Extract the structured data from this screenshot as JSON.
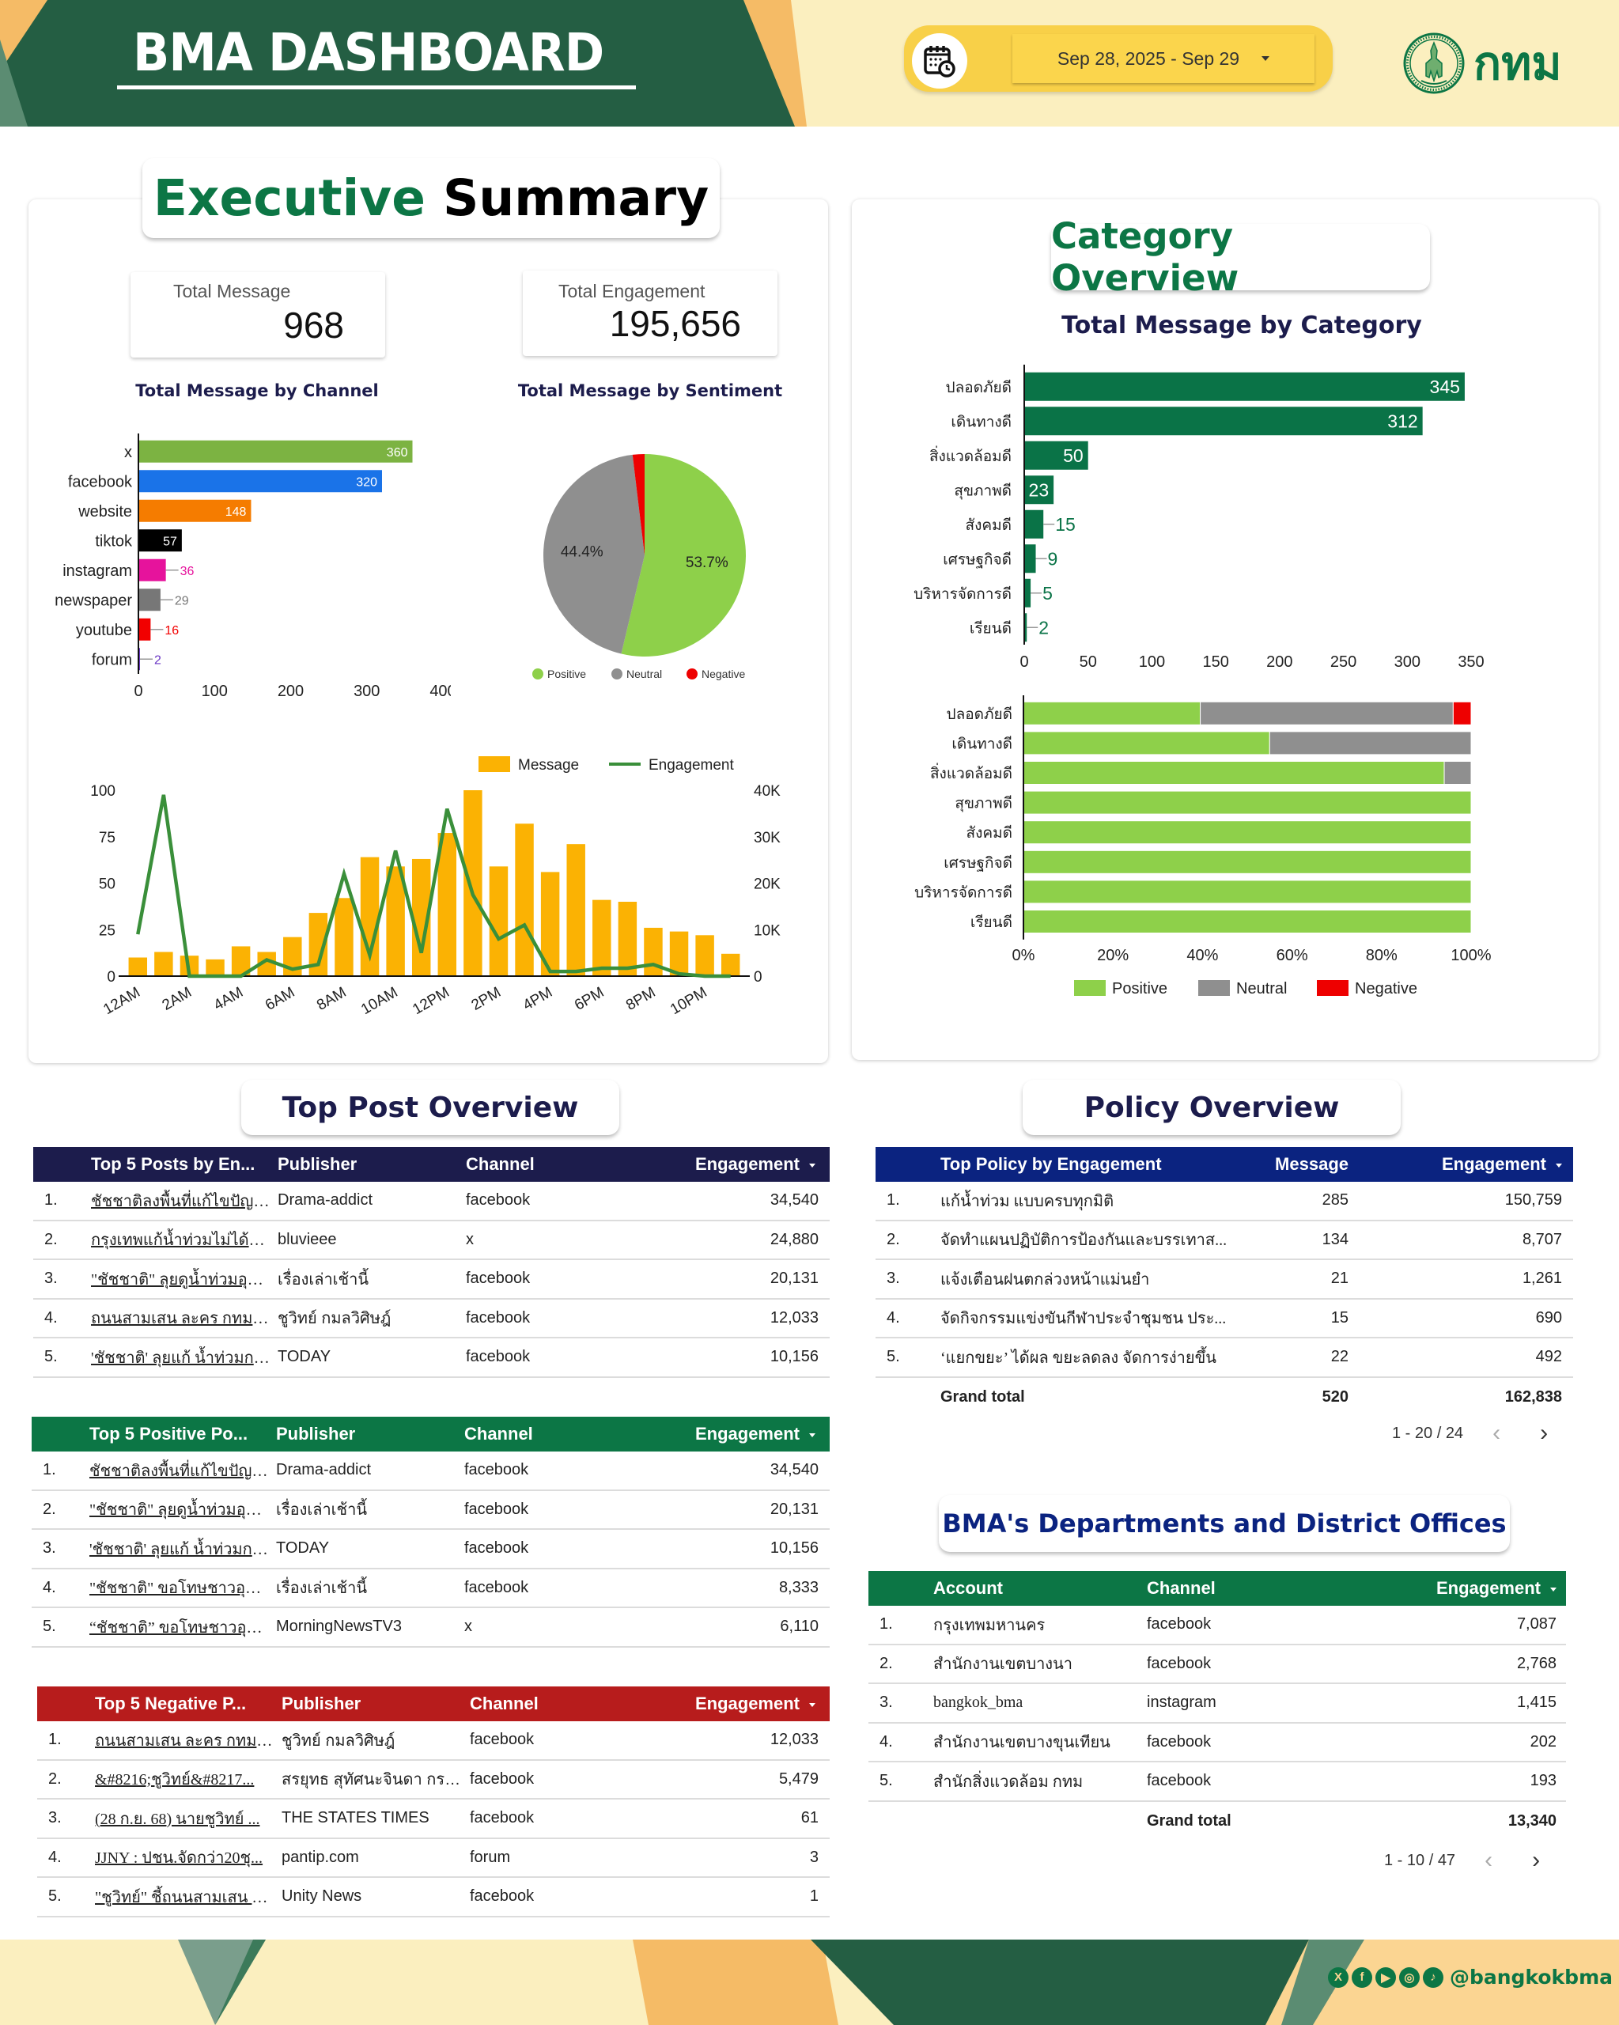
{
  "header": {
    "title": "BMA DASHBOARD",
    "date_range": "Sep 28, 2025 - Sep 29",
    "logo_text": "กทม"
  },
  "colors": {
    "brand_green": "#0c7645",
    "dark_green": "#245e43",
    "navy": "#1c1c4c",
    "policy_blue": "#0b2380",
    "negative_red": "#b71c1c",
    "positive": "#8ed04a",
    "neutral": "#8f8f8f",
    "negative": "#ee0000"
  },
  "executive_summary": {
    "title_part1": "Executive",
    "title_part2": "Summary",
    "kpis": [
      {
        "label": "Total Message",
        "value": "968"
      },
      {
        "label": "Total Engagement",
        "value": "195,656"
      }
    ]
  },
  "category_overview": {
    "title": "Category Overview"
  },
  "chart_data": [
    {
      "id": "channel",
      "type": "bar",
      "orientation": "horizontal",
      "title": "Total Message by Channel",
      "categories": [
        "x",
        "facebook",
        "website",
        "tiktok",
        "instagram",
        "newspaper",
        "youtube",
        "forum"
      ],
      "values": [
        360,
        320,
        148,
        57,
        36,
        29,
        16,
        2
      ],
      "colors": [
        "#7cb342",
        "#1a73e8",
        "#f57c00",
        "#000000",
        "#e6139c",
        "#777777",
        "#f20000",
        "#6a35c5"
      ],
      "xlim": [
        0,
        400
      ],
      "xticks": [
        "0",
        "100",
        "200",
        "300",
        "400"
      ]
    },
    {
      "id": "sentiment",
      "type": "pie",
      "title": "Total Message by Sentiment",
      "labels": [
        "Positive",
        "Neutral",
        "Negative"
      ],
      "values": [
        53.7,
        44.4,
        1.9
      ],
      "display_labels": [
        "53.7%",
        "44.4%",
        ""
      ],
      "colors": [
        "#8ed04a",
        "#8f8f8f",
        "#ee0000"
      ],
      "legend": "bottom"
    },
    {
      "id": "hourly",
      "type": "bar",
      "combo": "bar+line",
      "title": "",
      "x": [
        "12AM",
        "1AM",
        "2AM",
        "3AM",
        "4AM",
        "5AM",
        "6AM",
        "7AM",
        "8AM",
        "9AM",
        "10AM",
        "11AM",
        "12PM",
        "1PM",
        "2PM",
        "3PM",
        "4PM",
        "5PM",
        "6PM",
        "7PM",
        "8PM",
        "9PM",
        "10PM",
        "11PM"
      ],
      "xtick_labels": [
        "12AM",
        "2AM",
        "4AM",
        "6AM",
        "8AM",
        "10AM",
        "12PM",
        "2PM",
        "4PM",
        "6PM",
        "8PM",
        "10PM"
      ],
      "series": [
        {
          "name": "Message",
          "type": "bar",
          "axis": "left",
          "color": "#fbb203",
          "values": [
            10,
            13,
            11,
            9,
            16,
            13,
            21,
            34,
            42,
            64,
            59,
            63,
            77,
            100,
            59,
            82,
            56,
            71,
            41,
            40,
            26,
            24,
            22,
            12
          ]
        },
        {
          "name": "Engagement",
          "type": "line",
          "axis": "right",
          "color": "#3a8f3a",
          "values": [
            9000,
            39000,
            0,
            0,
            0,
            3500,
            1500,
            2500,
            22000,
            4500,
            27000,
            5000,
            36000,
            17500,
            8000,
            11000,
            1000,
            1000,
            1700,
            1700,
            2500,
            500,
            0,
            0
          ]
        }
      ],
      "ylim": [
        0,
        100
      ],
      "yticks": [
        "0",
        "25",
        "50",
        "75",
        "100"
      ],
      "y2lim": [
        0,
        40000
      ],
      "y2ticks": [
        "0",
        "10K",
        "20K",
        "30K",
        "40K"
      ],
      "legend": "top-right"
    },
    {
      "id": "category",
      "type": "bar",
      "orientation": "horizontal",
      "title": "Total Message by Category",
      "categories": [
        "ปลอดภัยดี",
        "เดินทางดี",
        "สิ่งแวดล้อมดี",
        "สุขภาพดี",
        "สังคมดี",
        "เศรษฐกิจดี",
        "บริหารจัดการดี",
        "เรียนดี"
      ],
      "values": [
        345,
        312,
        50,
        23,
        15,
        9,
        5,
        2
      ],
      "color": "#0a7347",
      "xlim": [
        0,
        350
      ],
      "xticks": [
        "0",
        "50",
        "100",
        "150",
        "200",
        "250",
        "300",
        "350"
      ]
    },
    {
      "id": "category_sentiment",
      "type": "bar",
      "orientation": "horizontal",
      "stacked": "percent",
      "title": "",
      "categories": [
        "ปลอดภัยดี",
        "เดินทางดี",
        "สิ่งแวดล้อมดี",
        "สุขภาพดี",
        "สังคมดี",
        "เศรษฐกิจดี",
        "บริหารจัดการดี",
        "เรียนดี"
      ],
      "series": [
        {
          "name": "Positive",
          "color": "#8ed04a",
          "values": [
            39.5,
            55,
            94,
            100,
            100,
            100,
            100,
            100
          ]
        },
        {
          "name": "Neutral",
          "color": "#8f8f8f",
          "values": [
            56.5,
            45,
            6,
            0,
            0,
            0,
            0,
            0
          ]
        },
        {
          "name": "Negative",
          "color": "#ee0000",
          "values": [
            4,
            0,
            0,
            0,
            0,
            0,
            0,
            0
          ]
        }
      ],
      "xlim": [
        0,
        100
      ],
      "xticks": [
        "0%",
        "20%",
        "40%",
        "60%",
        "80%",
        "100%"
      ],
      "legend": "bottom"
    }
  ],
  "top_post": {
    "title": "Top Post Overview",
    "tables": [
      {
        "id": "top5",
        "color": "#1c1c4c",
        "headers": [
          "Top 5 Posts by En...",
          "Publisher",
          "Channel",
          "Engagement"
        ],
        "rows": [
          {
            "rank": "1.",
            "post": "ชัชชาติลงพื้นที่แก้ไขปัญหา...",
            "publisher": "Drama-addict",
            "channel": "facebook",
            "engagement": "34,540"
          },
          {
            "rank": "2.",
            "post": "กรุงเทพแก้น้ำท่วมไม่ได้สัก...",
            "publisher": "bluvieee",
            "channel": "x",
            "engagement": "24,880"
          },
          {
            "rank": "3.",
            "post": "\"ชัชชาติ\" ลุยดูน้ำท่วมอุดม...",
            "publisher": "เรื่องเล่าเช้านี้",
            "channel": "facebook",
            "engagement": "20,131"
          },
          {
            "rank": "4.",
            "post": "ถนนสามเสน ละคร กทม. . ...",
            "publisher": "ชูวิทย์ กมลวิศิษฎ์",
            "channel": "facebook",
            "engagement": "12,033"
          },
          {
            "rank": "5.",
            "post": "'ชัชชาติ' ลุยแก้ น้ำท่วมกลา...",
            "publisher": "TODAY",
            "channel": "facebook",
            "engagement": "10,156"
          }
        ]
      },
      {
        "id": "positive",
        "color": "#0c7645",
        "headers": [
          "Top 5 Positive Po...",
          "Publisher",
          "Channel",
          "Engagement"
        ],
        "rows": [
          {
            "rank": "1.",
            "post": "ชัชชาติลงพื้นที่แก้ไขปัญหา...",
            "publisher": "Drama-addict",
            "channel": "facebook",
            "engagement": "34,540"
          },
          {
            "rank": "2.",
            "post": "\"ชัชชาติ\" ลุยดูน้ำท่วมอุดม...",
            "publisher": "เรื่องเล่าเช้านี้",
            "channel": "facebook",
            "engagement": "20,131"
          },
          {
            "rank": "3.",
            "post": "'ชัชชาติ' ลุยแก้ น้ำท่วมกลา...",
            "publisher": "TODAY",
            "channel": "facebook",
            "engagement": "10,156"
          },
          {
            "rank": "4.",
            "post": "\"ชัชชาติ\" ขอโทษชาวอุดมสุ...",
            "publisher": "เรื่องเล่าเช้านี้",
            "channel": "facebook",
            "engagement": "8,333"
          },
          {
            "rank": "5.",
            "post": "“ชัชชาติ” ขอโทษชาวอุดมสุ...",
            "publisher": "MorningNewsTV3",
            "channel": "x",
            "engagement": "6,110"
          }
        ]
      },
      {
        "id": "negative",
        "color": "#b71c1c",
        "headers": [
          "Top 5 Negative P...",
          "Publisher",
          "Channel",
          "Engagement"
        ],
        "rows": [
          {
            "rank": "1.",
            "post": "ถนนสามเสน ละคร กทม. . ...",
            "publisher": "ชูวิทย์ กมลวิศิษฎ์",
            "channel": "facebook",
            "engagement": "12,033"
          },
          {
            "rank": "2.",
            "post": "&#8216;ชูวิทย์&#8217...",
            "publisher": "สรยุทธ สุทัศนะจินดา กรร...",
            "channel": "facebook",
            "engagement": "5,479"
          },
          {
            "rank": "3.",
            "post": "(28 ก.ย. 68) นายชูวิทย์ ...",
            "publisher": "THE STATES TIMES",
            "channel": "facebook",
            "engagement": "61"
          },
          {
            "rank": "4.",
            "post": "JJNY : ปชน.จัดกว่า20ชุ...",
            "publisher": "pantip.com",
            "channel": "forum",
            "engagement": "3"
          },
          {
            "rank": "5.",
            "post": "\"ชูวิทย์\" ชี้ถนนสามเสน ละ...",
            "publisher": "Unity News",
            "channel": "facebook",
            "engagement": "1"
          }
        ]
      }
    ]
  },
  "policy": {
    "title": "Policy Overview",
    "color": "#0b2380",
    "headers": [
      "Top Policy by Engagement",
      "Message",
      "Engagement"
    ],
    "rows": [
      {
        "rank": "1.",
        "policy": "แก้น้ำท่วม แบบครบทุกมิติ",
        "message": "285",
        "engagement": "150,759"
      },
      {
        "rank": "2.",
        "policy": "จัดทำแผนปฏิบัติการป้องกันและบรรเทาส...",
        "message": "134",
        "engagement": "8,707"
      },
      {
        "rank": "3.",
        "policy": "แจ้งเตือนฝนตกล่วงหน้าแม่นยำ",
        "message": "21",
        "engagement": "1,261"
      },
      {
        "rank": "4.",
        "policy": "จัดกิจกรรมแข่งขันกีฬาประจำชุมชน ประ...",
        "message": "15",
        "engagement": "690"
      },
      {
        "rank": "5.",
        "policy": "‘แยกขยะ’ ได้ผล ขยะลดลง จัดการง่ายขึ้น",
        "message": "22",
        "engagement": "492"
      }
    ],
    "total_label": "Grand total",
    "total_message": "520",
    "total_engagement": "162,838",
    "pagination": "1 - 20 / 24"
  },
  "departments": {
    "title": "BMA's Departments and District Offices",
    "color": "#0c7645",
    "headers": [
      "Account",
      "Channel",
      "Engagement"
    ],
    "rows": [
      {
        "rank": "1.",
        "account": "กรุงเทพมหานคร",
        "channel": "facebook",
        "engagement": "7,087"
      },
      {
        "rank": "2.",
        "account": "สำนักงานเขตบางนา",
        "channel": "facebook",
        "engagement": "2,768"
      },
      {
        "rank": "3.",
        "account": "bangkok_bma",
        "channel": "instagram",
        "engagement": "1,415"
      },
      {
        "rank": "4.",
        "account": "สำนักงานเขตบางขุนเทียน",
        "channel": "facebook",
        "engagement": "202"
      },
      {
        "rank": "5.",
        "account": "สำนักสิ่งแวดล้อม กทม",
        "channel": "facebook",
        "engagement": "193"
      }
    ],
    "total_label": "Grand total",
    "total_engagement": "13,340",
    "pagination": "1 - 10 / 47"
  },
  "footer": {
    "social_icons": [
      "x-icon",
      "facebook-icon",
      "youtube-icon",
      "instagram-icon",
      "tiktok-icon"
    ],
    "handle": "@bangkokbma"
  }
}
